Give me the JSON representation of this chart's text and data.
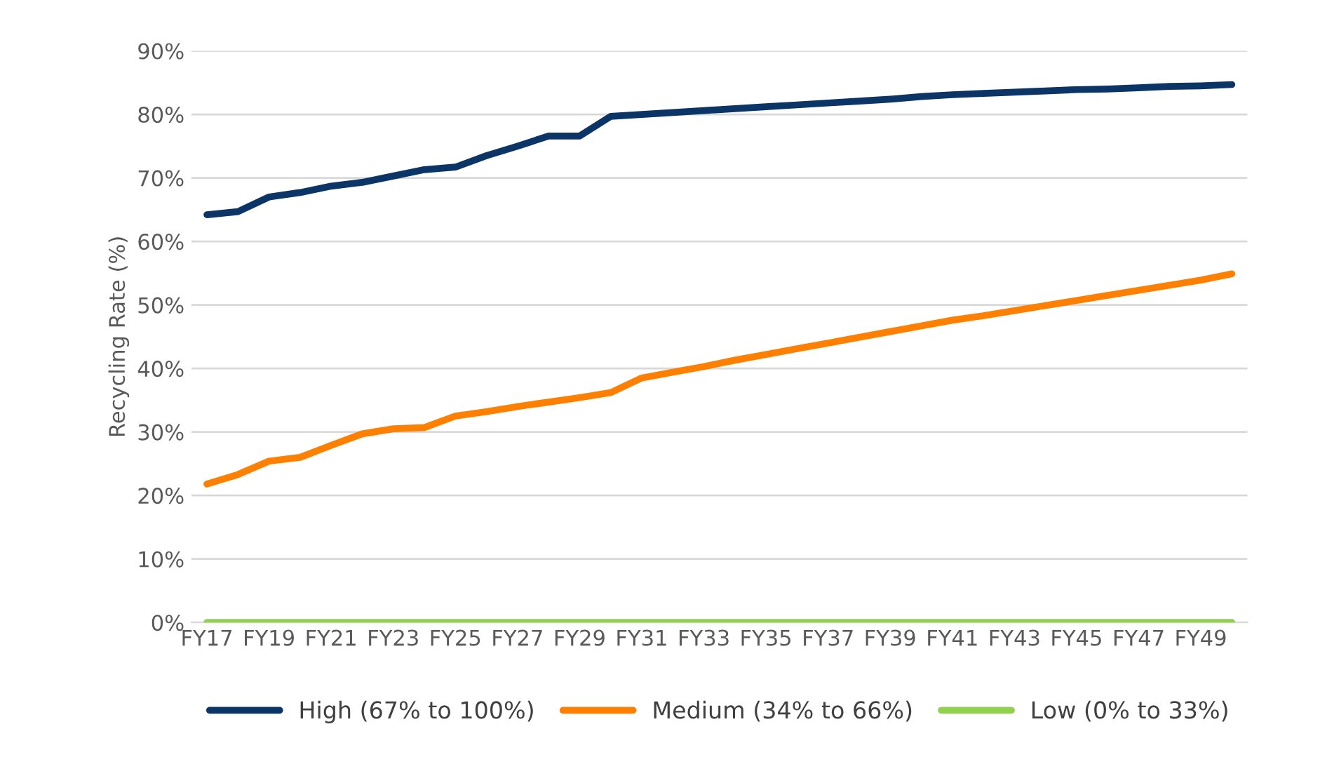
{
  "chart_data": {
    "type": "line",
    "ylabel": "Recycling Rate (%)",
    "categories": [
      "FY17",
      null,
      "FY19",
      null,
      "FY21",
      null,
      "FY23",
      null,
      "FY25",
      null,
      "FY27",
      null,
      "FY29",
      null,
      "FY31",
      null,
      "FY33",
      null,
      "FY35",
      null,
      "FY37",
      null,
      "FY39",
      null,
      "FY41",
      null,
      "FY43",
      null,
      "FY45",
      null,
      "FY47",
      null,
      "FY49",
      null
    ],
    "series": [
      {
        "name": "High (67% to 100%)",
        "color": "#0b3467",
        "values": [
          64.2,
          64.7,
          67.0,
          67.7,
          68.7,
          69.3,
          70.3,
          71.3,
          71.7,
          73.5,
          75.0,
          76.6,
          76.6,
          79.7,
          80.0,
          80.3,
          80.6,
          80.9,
          81.2,
          81.5,
          81.8,
          82.1,
          82.4,
          82.8,
          83.1,
          83.3,
          83.5,
          83.7,
          83.9,
          84.0,
          84.2,
          84.4,
          84.5,
          84.7
        ]
      },
      {
        "name": "Medium (34% to 66%)",
        "color": "#ff8000",
        "values": [
          21.8,
          23.3,
          25.4,
          26.0,
          27.9,
          29.7,
          30.5,
          30.7,
          32.5,
          33.2,
          34.0,
          34.7,
          35.4,
          36.2,
          38.5,
          39.4,
          40.3,
          41.3,
          42.2,
          43.1,
          44.0,
          44.9,
          45.8,
          46.7,
          47.6,
          48.3,
          49.1,
          49.9,
          50.7,
          51.5,
          52.3,
          53.1,
          53.9,
          54.9
        ]
      },
      {
        "name": "Low (0% to 33%)",
        "color": "#92d050",
        "values": [
          0,
          0,
          0,
          0,
          0,
          0,
          0,
          0,
          0,
          0,
          0,
          0,
          0,
          0,
          0,
          0,
          0,
          0,
          0,
          0,
          0,
          0,
          0,
          0,
          0,
          0,
          0,
          0,
          0,
          0,
          0,
          0,
          0,
          0
        ]
      }
    ],
    "ylim": [
      0,
      90
    ],
    "yticks": [
      {
        "value": 0,
        "label": "0%"
      },
      {
        "value": 10,
        "label": "10%"
      },
      {
        "value": 20,
        "label": "20%"
      },
      {
        "value": 30,
        "label": "30%"
      },
      {
        "value": 40,
        "label": "40%"
      },
      {
        "value": 50,
        "label": "50%"
      },
      {
        "value": 60,
        "label": "60%"
      },
      {
        "value": 70,
        "label": "70%"
      },
      {
        "value": 80,
        "label": "80%"
      },
      {
        "value": 90,
        "label": "90%"
      }
    ],
    "grid": "y",
    "legend": "bottom",
    "marker": "none",
    "line_style": "solid"
  }
}
